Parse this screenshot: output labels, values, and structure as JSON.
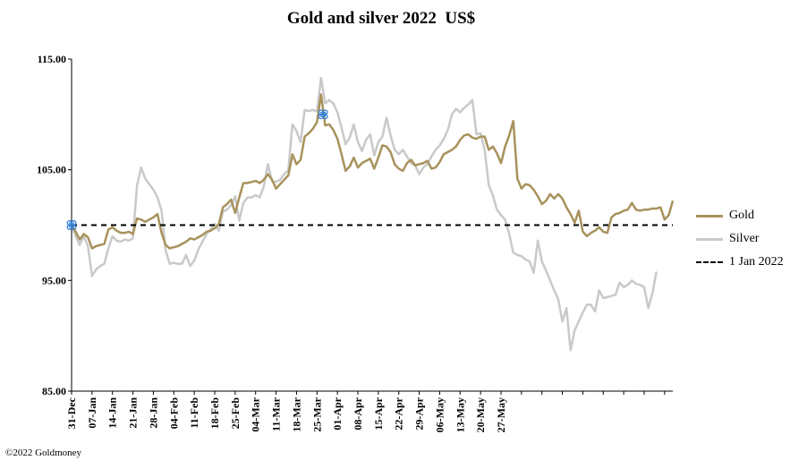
{
  "chart_data": {
    "type": "line",
    "title": "Gold and silver 2022  US$",
    "xlabel": "",
    "ylabel": "",
    "ylim": [
      85,
      115
    ],
    "yticks": [
      "115.00",
      "105.00",
      "95.00",
      "85.00"
    ],
    "ytick_values": [
      115,
      105,
      95,
      85
    ],
    "xtick_labels": [
      "31-Dec",
      "07-Jan",
      "14-Jan",
      "21-Jan",
      "28-Jan",
      "04-Feb",
      "11-Feb",
      "18-Feb",
      "25-Feb",
      "04-Mar",
      "11-Mar",
      "18-Mar",
      "25-Mar",
      "01-Apr",
      "08-Apr",
      "15-Apr",
      "22-Apr",
      "29-Apr",
      "06-May",
      "13-May",
      "20-May",
      "27-May"
    ],
    "grid": false,
    "legend_position": "right",
    "series": [
      {
        "name": "Gold",
        "color": "#a8925c",
        "style": "solid",
        "values": [
          100.0,
          99.4,
          98.7,
          99.2,
          98.9,
          97.9,
          98.1,
          98.2,
          98.3,
          99.6,
          99.8,
          99.5,
          99.3,
          99.3,
          99.4,
          99.2,
          100.6,
          100.5,
          100.3,
          100.5,
          100.7,
          101.0,
          99.3,
          98.2,
          97.9,
          98.0,
          98.1,
          98.3,
          98.5,
          98.8,
          98.7,
          98.9,
          99.1,
          99.4,
          99.5,
          99.7,
          100.1,
          101.6,
          101.9,
          102.3,
          101.1,
          102.5,
          103.8,
          103.8,
          103.9,
          104.0,
          103.8,
          104.1,
          104.6,
          104.1,
          103.3,
          103.7,
          104.1,
          104.5,
          106.4,
          105.5,
          105.9,
          108.0,
          108.3,
          108.7,
          109.3,
          111.8,
          109.0,
          109.1,
          108.6,
          107.8,
          106.4,
          104.9,
          105.3,
          106.1,
          105.2,
          105.6,
          105.8,
          106.0,
          105.1,
          106.1,
          107.2,
          107.1,
          106.6,
          105.5,
          105.1,
          104.9,
          105.6,
          105.9,
          105.4,
          105.5,
          105.6,
          105.8,
          105.1,
          105.2,
          105.7,
          106.4,
          106.6,
          106.8,
          107.1,
          107.7,
          108.1,
          108.2,
          107.9,
          107.8,
          108.0,
          108.0,
          106.8,
          107.1,
          106.5,
          105.6,
          107.1,
          108.1,
          109.4,
          104.2,
          103.3,
          103.7,
          103.6,
          103.2,
          102.6,
          101.9,
          102.2,
          102.8,
          102.4,
          102.8,
          102.4,
          101.6,
          101.0,
          100.2,
          101.3,
          99.4,
          99.0,
          99.3,
          99.5,
          99.8,
          99.4,
          99.3,
          100.7,
          101.0,
          101.1,
          101.3,
          101.4,
          102.0,
          101.4,
          101.3,
          101.4,
          101.4,
          101.5,
          101.5,
          101.6,
          100.5,
          100.9,
          102.2
        ]
      },
      {
        "name": "Silver",
        "color": "#c9c9c9",
        "style": "solid",
        "values": [
          100.0,
          99.0,
          98.2,
          99.0,
          98.1,
          95.4,
          96.0,
          96.3,
          96.5,
          97.9,
          99.0,
          98.6,
          98.5,
          98.7,
          98.6,
          98.8,
          103.6,
          105.2,
          104.2,
          103.7,
          103.2,
          102.5,
          101.3,
          97.7,
          96.5,
          96.6,
          96.5,
          96.5,
          97.3,
          96.3,
          96.8,
          97.8,
          98.5,
          99.2,
          99.6,
          100.1,
          99.5,
          101.2,
          101.4,
          101.8,
          102.6,
          100.4,
          102.0,
          102.5,
          102.5,
          102.7,
          102.5,
          103.5,
          105.5,
          104.0,
          103.9,
          104.1,
          104.6,
          105.0,
          109.1,
          108.5,
          107.5,
          110.4,
          110.3,
          110.4,
          110.3,
          113.3,
          111.0,
          111.3,
          111.0,
          110.2,
          108.8,
          107.3,
          107.9,
          109.1,
          107.5,
          106.7,
          107.7,
          108.2,
          106.3,
          107.5,
          108.0,
          109.7,
          108.1,
          106.8,
          106.4,
          106.8,
          106.2,
          105.6,
          105.4,
          104.6,
          105.2,
          105.5,
          106.2,
          106.8,
          107.2,
          107.8,
          108.6,
          110.0,
          110.5,
          110.2,
          110.6,
          110.9,
          111.3,
          108.2,
          108.3,
          106.8,
          103.6,
          102.7,
          101.4,
          100.9,
          100.5,
          99.2,
          97.5,
          97.3,
          97.2,
          96.9,
          96.7,
          95.7,
          98.6,
          96.7,
          95.9,
          95.0,
          94.1,
          93.3,
          91.3,
          92.5,
          88.7,
          90.5,
          91.3,
          92.1,
          92.8,
          92.8,
          92.2,
          94.1,
          93.4,
          93.5,
          93.6,
          93.7,
          94.8,
          94.4,
          94.6,
          95.0,
          94.7,
          94.6,
          94.4,
          92.5,
          93.8,
          95.8
        ]
      },
      {
        "name": "1 Jan 2022",
        "color": "#000000",
        "style": "dashed",
        "values": [
          100,
          100
        ]
      }
    ],
    "markers": [
      {
        "icon": "pin-icon",
        "color": "#2f7fd8",
        "index": 0,
        "value": 100.0
      },
      {
        "icon": "pin-icon",
        "color": "#2f7fd8",
        "index": 61.5,
        "value": 110.0
      }
    ]
  },
  "footer": {
    "copyright": "©2022 Goldmoney"
  }
}
